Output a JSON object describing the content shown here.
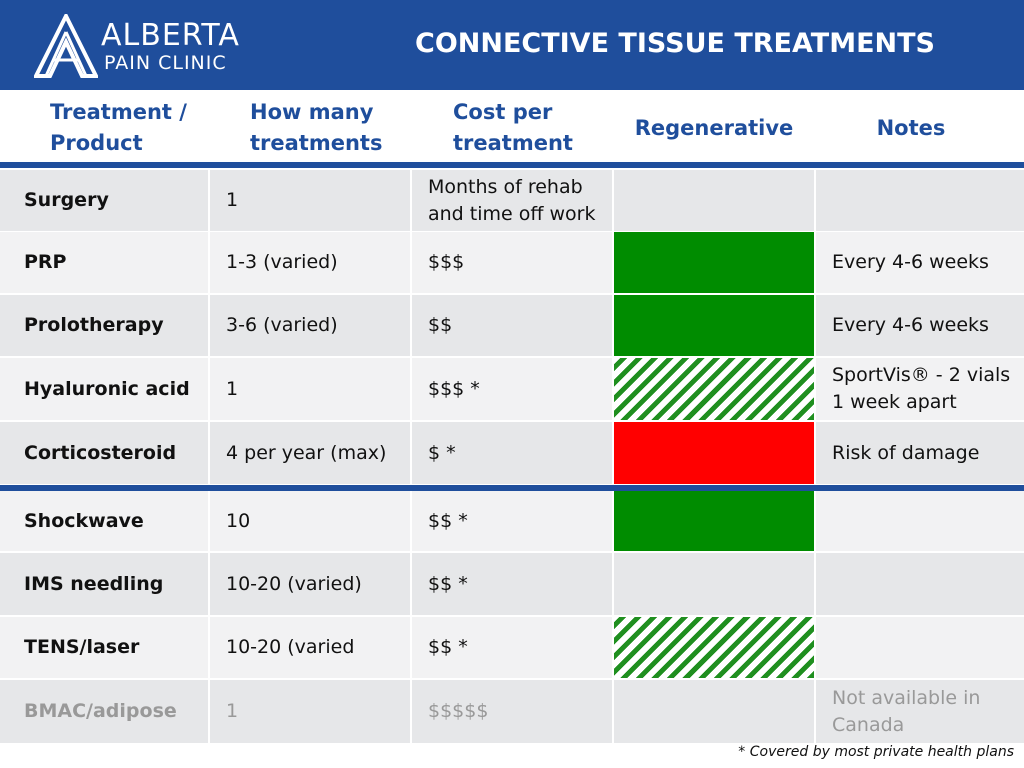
{
  "header": {
    "logo": {
      "line1": "ALBERTA",
      "line2": "PAIN CLINIC"
    },
    "title": "CONNECTIVE TISSUE TREATMENTS"
  },
  "table": {
    "columns": [
      "Treatment / Product",
      "How many treatments",
      "Cost per treatment",
      "Regenerative",
      "Notes"
    ],
    "rows": [
      {
        "treatment": "Surgery",
        "count": "1",
        "cost": "Months of rehab and time off work"
      },
      {
        "treatment": "PRP",
        "count": "1-3 (varied)",
        "cost": "$$$",
        "regenerative": {
          "color": "#008c00",
          "hatched": false
        },
        "notes": "Every 4-6 weeks"
      },
      {
        "treatment": "Prolotherapy",
        "count": "3-6 (varied)",
        "cost": "$$",
        "regenerative": {
          "color": "#008c00",
          "hatched": false
        },
        "notes": "Every 4-6 weeks"
      },
      {
        "treatment": "Hyaluronic acid",
        "count": "1",
        "cost": "$$$ *",
        "regenerative": {
          "color": "#1f8f1f",
          "hatched": true
        },
        "notes": "SportVis® - 2 vials 1 week apart"
      },
      {
        "treatment": "Corticosteroid",
        "count": "4 per year (max)",
        "cost": "$ *",
        "regenerative": {
          "color": "#ff0000",
          "hatched": false
        },
        "notes": "Risk of damage"
      },
      {
        "treatment": "Shockwave",
        "count": "10",
        "cost": "$$ *",
        "regenerative": {
          "color": "#008c00",
          "hatched": false
        }
      },
      {
        "treatment": "IMS needling",
        "count": "10-20 (varied)",
        "cost": "$$ *"
      },
      {
        "treatment": "TENS/laser",
        "count": "10-20 (varied",
        "cost": "$$ *",
        "regenerative": {
          "color": "#1f8f1f",
          "hatched": true
        }
      },
      {
        "treatment": "BMAC/adipose",
        "count": "1",
        "cost": "$$$$$",
        "notes": "Not available in Canada",
        "muted": true
      }
    ],
    "footnote": "* Covered by most private health plans"
  }
}
